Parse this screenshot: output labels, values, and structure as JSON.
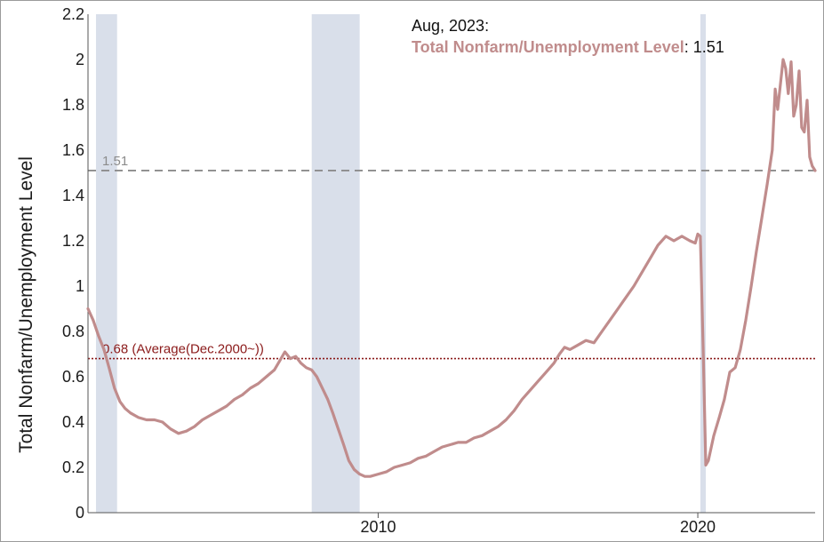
{
  "colors": {
    "series": "#c08c8c",
    "recession": "#d9dfea",
    "last_line": "#8c8c8c",
    "avg_line": "#8b1a1a",
    "axis": "#555555"
  },
  "annotation": {
    "date": "Aug, 2023:",
    "series_label": "Total Nonfarm/Unemployment Level",
    "value_text": ": 1.51"
  },
  "chart_data": {
    "type": "line",
    "title": "",
    "xlabel": "",
    "ylabel": "Total Nonfarm/Unemployment Level",
    "ylim": [
      0,
      2.2
    ],
    "xlim": [
      2000.92,
      2023.67
    ],
    "yticks": [
      0,
      0.2,
      0.4,
      0.6,
      0.8,
      1,
      1.2,
      1.4,
      1.6,
      1.8,
      2,
      2.2
    ],
    "ytick_labels": [
      "0",
      "0.2",
      "0.4",
      "0.6",
      "0.8",
      "1",
      "1.2",
      "1.4",
      "1.6",
      "1.8",
      "2",
      "2.2"
    ],
    "xticks": [
      2010,
      2020
    ],
    "xtick_labels": [
      "2010",
      "2020"
    ],
    "grid": false,
    "recessions": [
      [
        2001.17,
        2001.83
      ],
      [
        2007.92,
        2009.42
      ],
      [
        2020.08,
        2020.25
      ]
    ],
    "reference_lines": [
      {
        "value": 1.51,
        "label": "1.51",
        "style": "dashed"
      },
      {
        "value": 0.68,
        "label": "0.68 (Average(Dec.2000~))",
        "style": "dotted"
      }
    ],
    "series": [
      {
        "points": [
          [
            2000.92,
            0.9
          ],
          [
            2001.08,
            0.85
          ],
          [
            2001.25,
            0.78
          ],
          [
            2001.42,
            0.72
          ],
          [
            2001.58,
            0.64
          ],
          [
            2001.75,
            0.55
          ],
          [
            2001.92,
            0.49
          ],
          [
            2002.08,
            0.46
          ],
          [
            2002.25,
            0.44
          ],
          [
            2002.5,
            0.42
          ],
          [
            2002.75,
            0.41
          ],
          [
            2003.0,
            0.41
          ],
          [
            2003.25,
            0.4
          ],
          [
            2003.5,
            0.37
          ],
          [
            2003.75,
            0.35
          ],
          [
            2004.0,
            0.36
          ],
          [
            2004.25,
            0.38
          ],
          [
            2004.5,
            0.41
          ],
          [
            2004.75,
            0.43
          ],
          [
            2005.0,
            0.45
          ],
          [
            2005.25,
            0.47
          ],
          [
            2005.5,
            0.5
          ],
          [
            2005.75,
            0.52
          ],
          [
            2006.0,
            0.55
          ],
          [
            2006.25,
            0.57
          ],
          [
            2006.5,
            0.6
          ],
          [
            2006.75,
            0.63
          ],
          [
            2006.92,
            0.67
          ],
          [
            2007.08,
            0.71
          ],
          [
            2007.25,
            0.68
          ],
          [
            2007.42,
            0.69
          ],
          [
            2007.58,
            0.66
          ],
          [
            2007.75,
            0.64
          ],
          [
            2007.92,
            0.63
          ],
          [
            2008.08,
            0.6
          ],
          [
            2008.25,
            0.55
          ],
          [
            2008.42,
            0.5
          ],
          [
            2008.58,
            0.44
          ],
          [
            2008.75,
            0.37
          ],
          [
            2008.92,
            0.3
          ],
          [
            2009.08,
            0.23
          ],
          [
            2009.25,
            0.19
          ],
          [
            2009.42,
            0.17
          ],
          [
            2009.58,
            0.16
          ],
          [
            2009.75,
            0.16
          ],
          [
            2010.0,
            0.17
          ],
          [
            2010.25,
            0.18
          ],
          [
            2010.5,
            0.2
          ],
          [
            2010.75,
            0.21
          ],
          [
            2011.0,
            0.22
          ],
          [
            2011.25,
            0.24
          ],
          [
            2011.5,
            0.25
          ],
          [
            2011.75,
            0.27
          ],
          [
            2012.0,
            0.29
          ],
          [
            2012.25,
            0.3
          ],
          [
            2012.5,
            0.31
          ],
          [
            2012.75,
            0.31
          ],
          [
            2013.0,
            0.33
          ],
          [
            2013.25,
            0.34
          ],
          [
            2013.5,
            0.36
          ],
          [
            2013.75,
            0.38
          ],
          [
            2014.0,
            0.41
          ],
          [
            2014.25,
            0.45
          ],
          [
            2014.5,
            0.5
          ],
          [
            2014.75,
            0.54
          ],
          [
            2015.0,
            0.58
          ],
          [
            2015.25,
            0.62
          ],
          [
            2015.5,
            0.66
          ],
          [
            2015.67,
            0.7
          ],
          [
            2015.83,
            0.73
          ],
          [
            2016.0,
            0.72
          ],
          [
            2016.25,
            0.74
          ],
          [
            2016.5,
            0.76
          ],
          [
            2016.75,
            0.75
          ],
          [
            2017.0,
            0.8
          ],
          [
            2017.25,
            0.85
          ],
          [
            2017.5,
            0.9
          ],
          [
            2017.75,
            0.95
          ],
          [
            2018.0,
            1.0
          ],
          [
            2018.25,
            1.06
          ],
          [
            2018.5,
            1.12
          ],
          [
            2018.75,
            1.18
          ],
          [
            2019.0,
            1.22
          ],
          [
            2019.25,
            1.2
          ],
          [
            2019.5,
            1.22
          ],
          [
            2019.75,
            1.2
          ],
          [
            2019.92,
            1.19
          ],
          [
            2020.0,
            1.23
          ],
          [
            2020.08,
            1.22
          ],
          [
            2020.17,
            0.7
          ],
          [
            2020.25,
            0.21
          ],
          [
            2020.33,
            0.23
          ],
          [
            2020.5,
            0.34
          ],
          [
            2020.67,
            0.42
          ],
          [
            2020.83,
            0.5
          ],
          [
            2021.0,
            0.62
          ],
          [
            2021.17,
            0.64
          ],
          [
            2021.33,
            0.72
          ],
          [
            2021.5,
            0.85
          ],
          [
            2021.67,
            1.0
          ],
          [
            2021.83,
            1.15
          ],
          [
            2022.0,
            1.3
          ],
          [
            2022.17,
            1.45
          ],
          [
            2022.33,
            1.6
          ],
          [
            2022.42,
            1.87
          ],
          [
            2022.5,
            1.78
          ],
          [
            2022.67,
            2.0
          ],
          [
            2022.75,
            1.96
          ],
          [
            2022.83,
            1.85
          ],
          [
            2022.92,
            1.99
          ],
          [
            2023.0,
            1.75
          ],
          [
            2023.08,
            1.8
          ],
          [
            2023.17,
            1.95
          ],
          [
            2023.25,
            1.7
          ],
          [
            2023.33,
            1.68
          ],
          [
            2023.42,
            1.82
          ],
          [
            2023.5,
            1.57
          ],
          [
            2023.58,
            1.53
          ],
          [
            2023.67,
            1.51
          ]
        ]
      }
    ]
  }
}
